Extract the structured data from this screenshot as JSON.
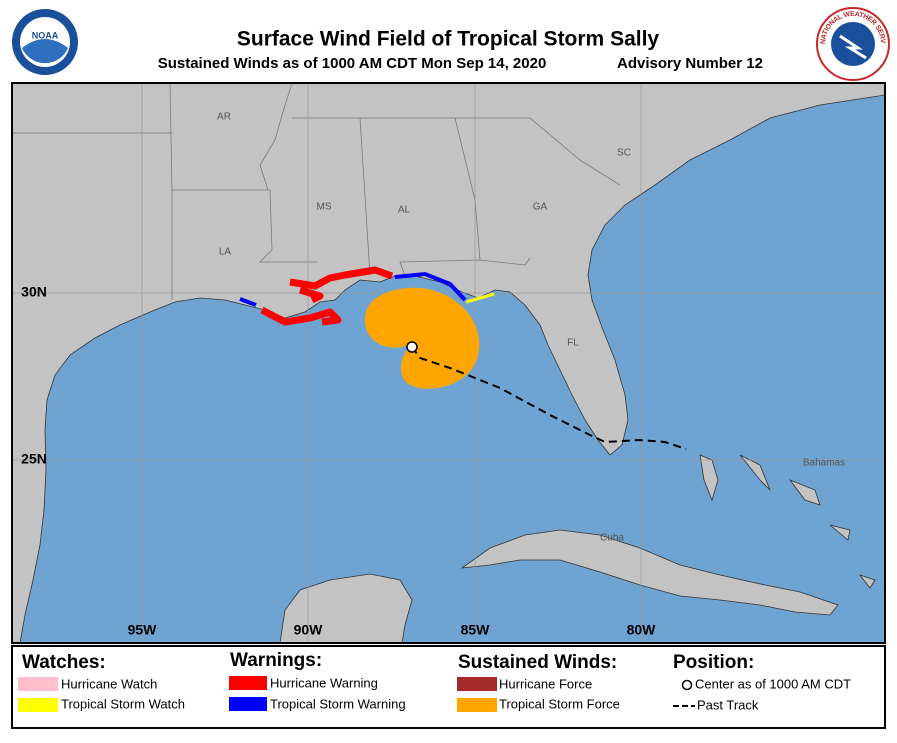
{
  "header": {
    "title": "Surface Wind Field of Tropical Storm Sally",
    "subtitle": "Sustained Winds as of 1000 AM CDT Mon Sep 14, 2020",
    "advisory": "Advisory Number 12",
    "left_logo": "NOAA",
    "right_logo": "NATIONAL WEATHER SERVICE"
  },
  "map": {
    "state_labels": [
      "AR",
      "MS",
      "AL",
      "GA",
      "SC",
      "LA",
      "FL"
    ],
    "region_labels": [
      "Bahamas",
      "Cuba"
    ],
    "lat_labels": [
      "30N",
      "25N"
    ],
    "lon_labels": [
      "95W",
      "90W",
      "85W",
      "80W"
    ]
  },
  "legend": {
    "watches": {
      "heading": "Watches:",
      "items": [
        "Hurricane Watch",
        "Tropical Storm Watch"
      ]
    },
    "warnings": {
      "heading": "Warnings:",
      "items": [
        "Hurricane Warning",
        "Tropical Storm Warning"
      ]
    },
    "winds": {
      "heading": "Sustained Winds:",
      "items": [
        "Hurricane Force",
        "Tropical Storm Force"
      ]
    },
    "position": {
      "heading": "Position:",
      "items": [
        "Center as of 1000 AM CDT",
        "Past Track"
      ]
    }
  }
}
